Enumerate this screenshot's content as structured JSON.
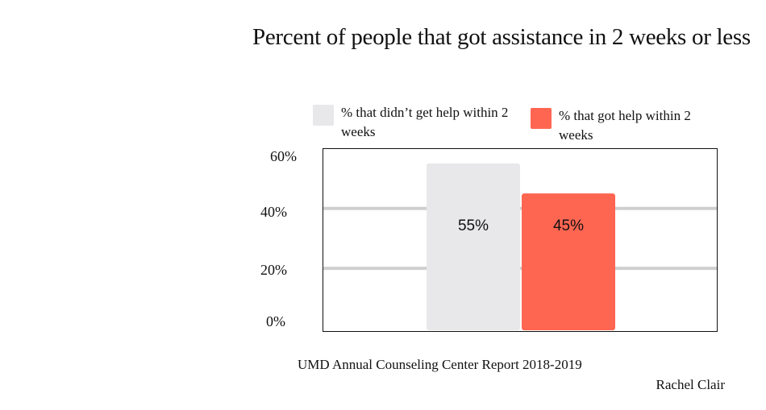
{
  "chart_data": {
    "type": "bar",
    "title": "Percent of people that got assistance in 2 weeks or less",
    "series": [
      {
        "name": "% that didn’t get help within 2 weeks",
        "value": 55,
        "label": "55%",
        "color": "#e8e8ea"
      },
      {
        "name": "% that got help within 2 weeks",
        "value": 45,
        "label": "45%",
        "color": "#ff6652"
      }
    ],
    "yticks": [
      "0%",
      "20%",
      "40%",
      "60%"
    ],
    "ylim": [
      0,
      60
    ],
    "grid": true,
    "legend_position": "top",
    "source": "UMD Annual Counseling Center Report 2018-2019",
    "author": "Rachel Clair"
  }
}
